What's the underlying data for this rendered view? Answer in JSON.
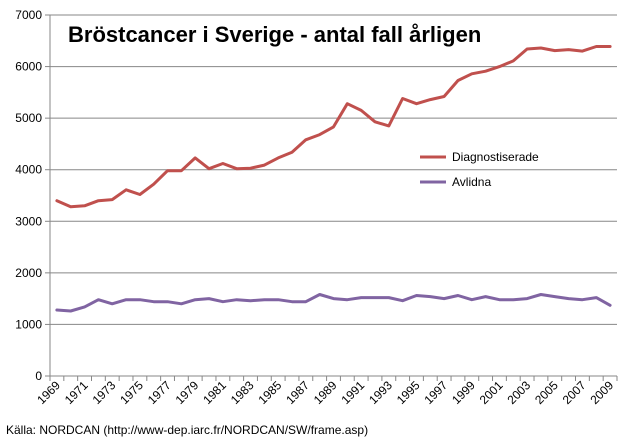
{
  "chart_data": {
    "type": "line",
    "title": "Bröstcancer i Sverige - antal fall årligen",
    "xlabel": "",
    "ylabel": "",
    "ylim": [
      0,
      7000
    ],
    "yticks": [
      0,
      1000,
      2000,
      3000,
      4000,
      5000,
      6000,
      7000
    ],
    "x": [
      1969,
      1970,
      1971,
      1972,
      1973,
      1974,
      1975,
      1976,
      1977,
      1978,
      1979,
      1980,
      1981,
      1982,
      1983,
      1984,
      1985,
      1986,
      1987,
      1988,
      1989,
      1990,
      1991,
      1992,
      1993,
      1994,
      1995,
      1996,
      1997,
      1998,
      1999,
      2000,
      2001,
      2002,
      2003,
      2004,
      2005,
      2006,
      2007,
      2008,
      2009
    ],
    "xtick_labels": [
      "1969",
      "1971",
      "1973",
      "1975",
      "1977",
      "1979",
      "1981",
      "1983",
      "1985",
      "1987",
      "1989",
      "1991",
      "1993",
      "1995",
      "1997",
      "1999",
      "2001",
      "2003",
      "2005",
      "2007",
      "2009"
    ],
    "grid": "horizontal",
    "legend_position": "right",
    "series": [
      {
        "name": "Diagnostiserade",
        "color": "#c0504d",
        "values": [
          3400,
          3280,
          3300,
          3400,
          3420,
          3610,
          3520,
          3720,
          3980,
          3980,
          4230,
          4020,
          4120,
          4020,
          4030,
          4090,
          4230,
          4340,
          4580,
          4680,
          4830,
          5280,
          5150,
          4930,
          4850,
          5380,
          5280,
          5360,
          5420,
          5730,
          5860,
          5910,
          6000,
          6110,
          6340,
          6360,
          6310,
          6330,
          6300,
          6390,
          6390
        ]
      },
      {
        "name": "Avlidna",
        "color": "#8064a2",
        "values": [
          1280,
          1260,
          1340,
          1480,
          1400,
          1480,
          1480,
          1440,
          1440,
          1400,
          1480,
          1500,
          1440,
          1480,
          1460,
          1480,
          1480,
          1440,
          1440,
          1580,
          1500,
          1480,
          1520,
          1520,
          1520,
          1460,
          1560,
          1540,
          1500,
          1560,
          1480,
          1540,
          1480,
          1480,
          1500,
          1580,
          1540,
          1500,
          1480,
          1520,
          1370
        ]
      }
    ]
  },
  "source_text": "Källa: NORDCAN (http://www-dep.iarc.fr/NORDCAN/SW/frame.asp)"
}
